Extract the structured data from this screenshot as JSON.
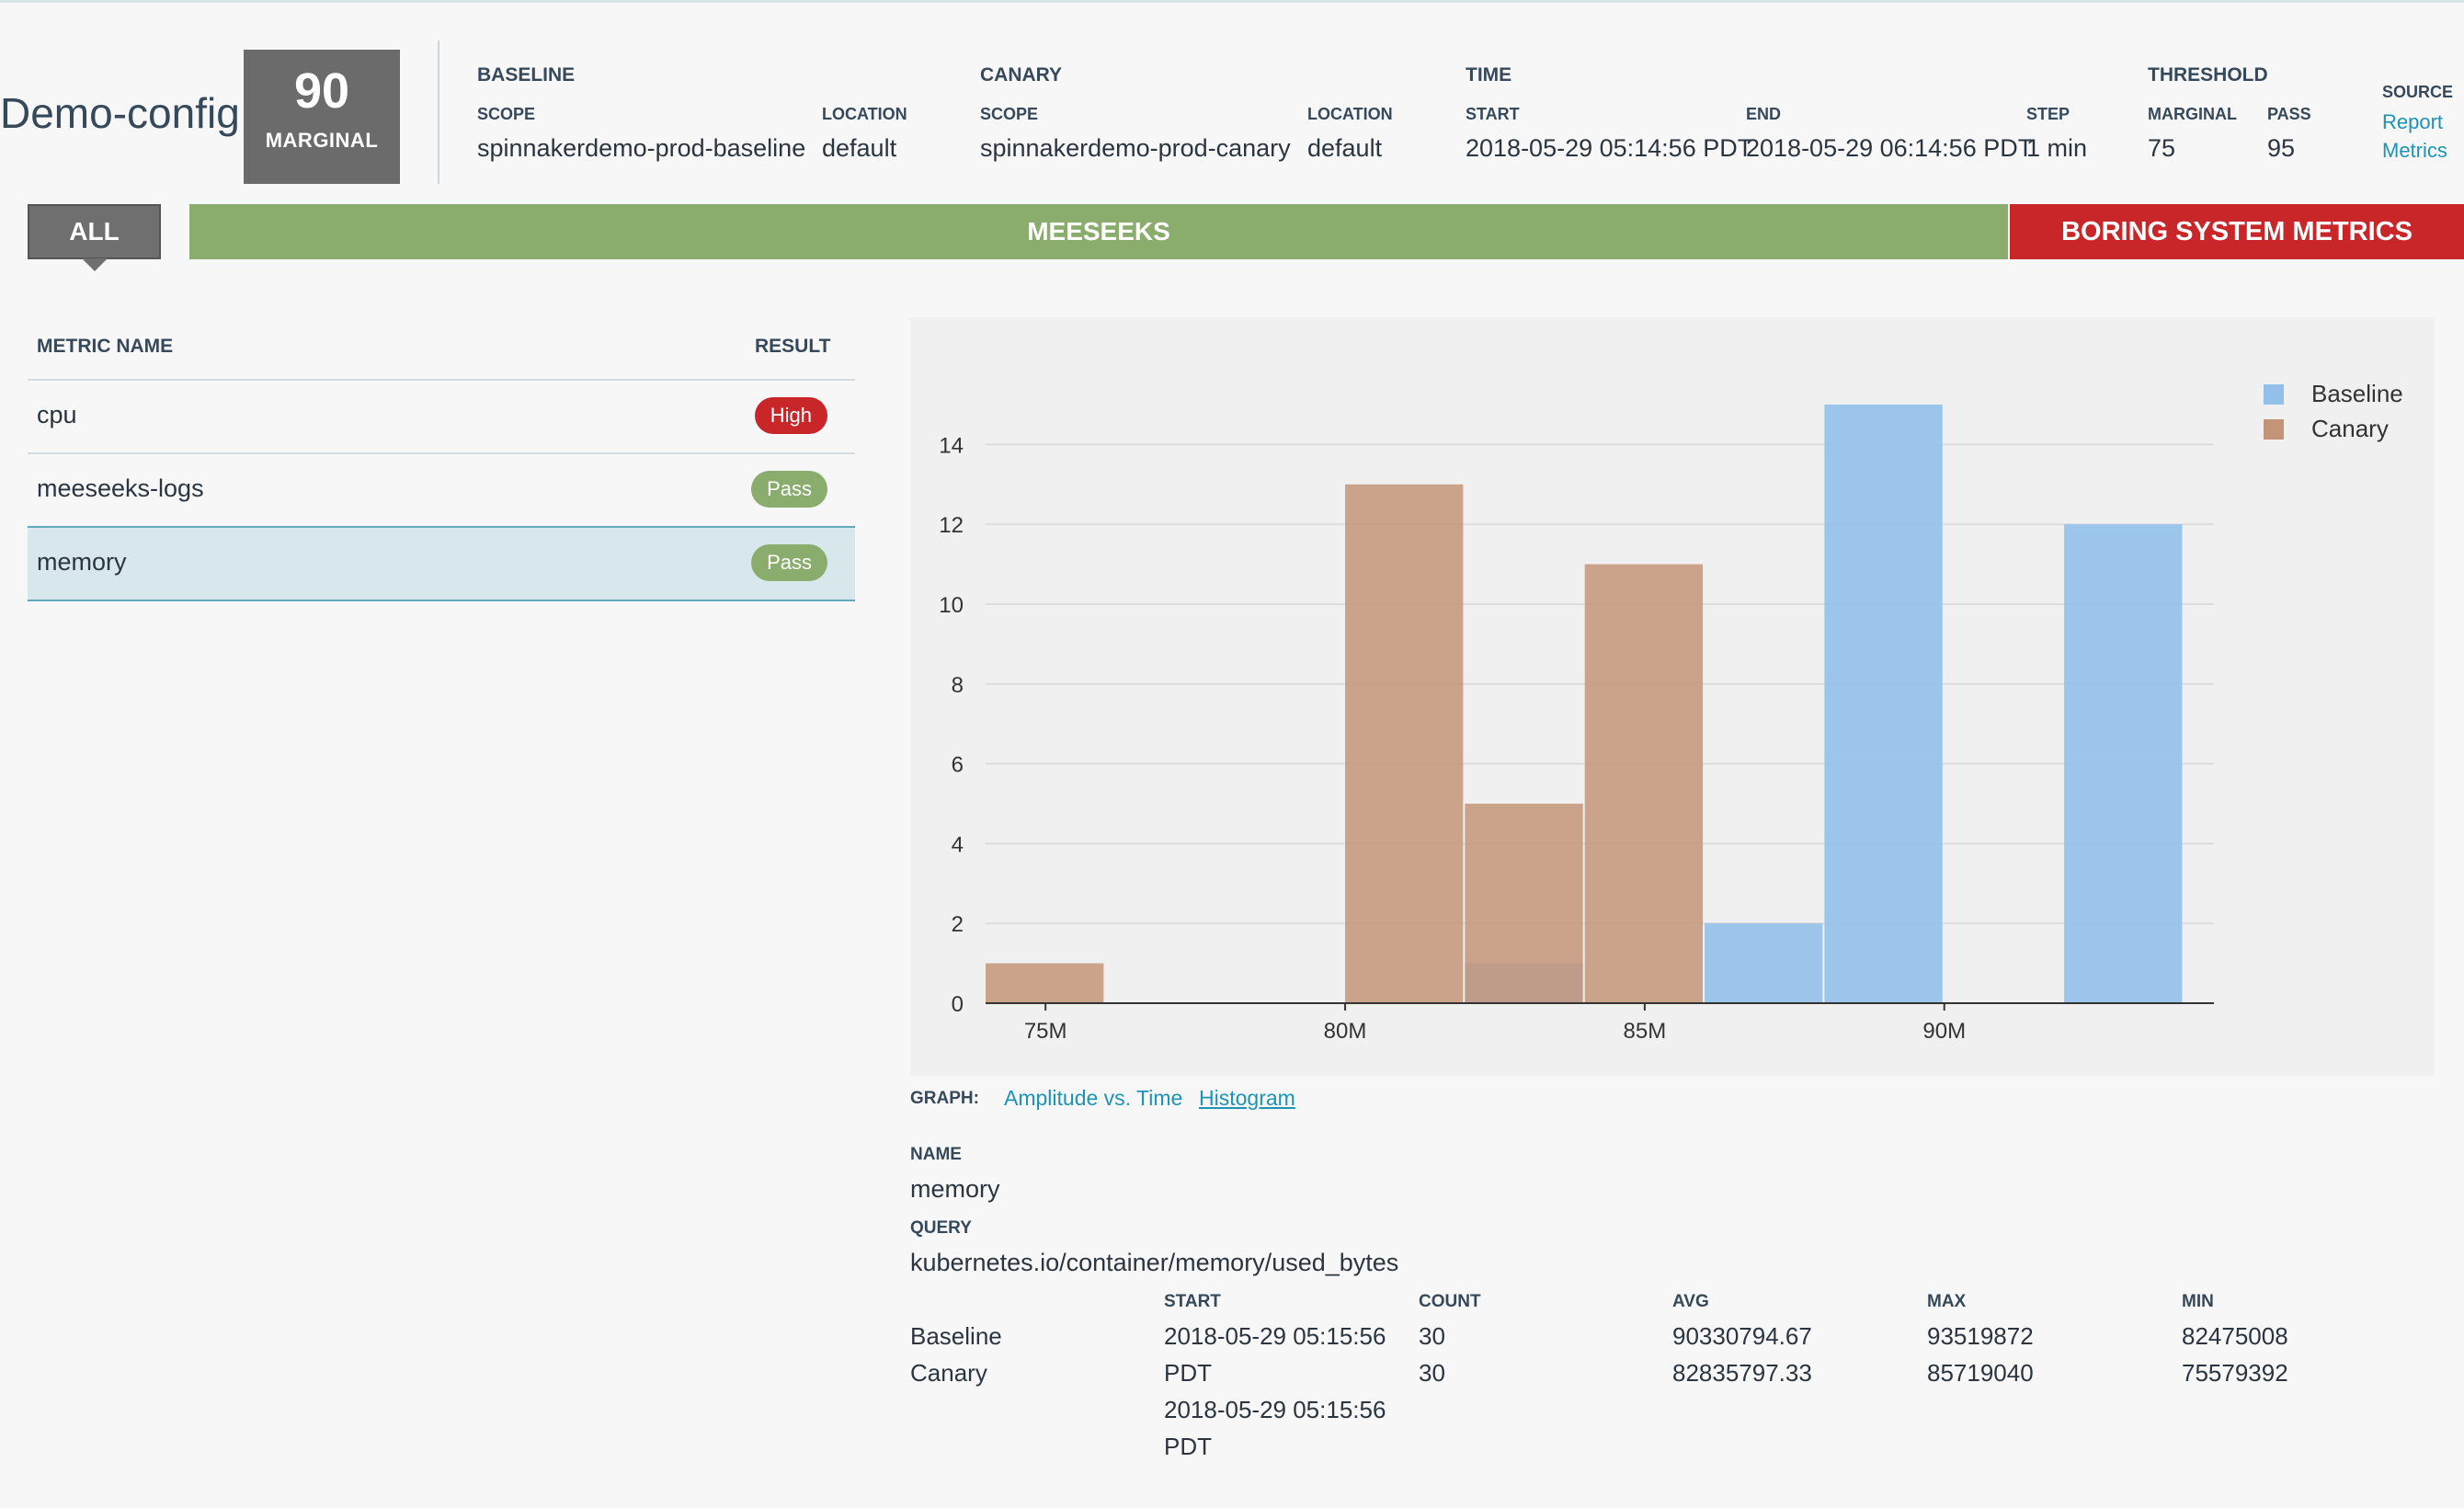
{
  "header": {
    "config_name": "Demo-config",
    "score": "90",
    "score_label": "MARGINAL",
    "baseline": {
      "group": "BASELINE",
      "scope_label": "SCOPE",
      "scope": "spinnakerdemo-prod-baseline",
      "location_label": "LOCATION",
      "location": "default"
    },
    "canary": {
      "group": "CANARY",
      "scope_label": "SCOPE",
      "scope": "spinnakerdemo-prod-canary",
      "location_label": "LOCATION",
      "location": "default"
    },
    "time": {
      "group": "TIME",
      "start_label": "START",
      "start": "2018-05-29 05:14:56 PDT",
      "end_label": "END",
      "end": "2018-05-29 06:14:56 PDT",
      "step_label": "STEP",
      "step": "1 min"
    },
    "threshold": {
      "group": "THRESHOLD",
      "marginal_label": "MARGINAL",
      "marginal": "75",
      "pass_label": "PASS",
      "pass": "95"
    },
    "source": {
      "label": "SOURCE",
      "report_link": "Report",
      "metrics_link": "Metrics"
    }
  },
  "groups": {
    "all": "ALL",
    "meeseeks": "MEESEEKS",
    "boring": "BORING SYSTEM METRICS",
    "colors": {
      "pass": "#8aad6d",
      "high": "#c9262a",
      "neutral": "#6f6f6f"
    }
  },
  "metrics_table": {
    "col_name": "METRIC NAME",
    "col_result": "RESULT",
    "rows": [
      {
        "name": "cpu",
        "result": "High"
      },
      {
        "name": "meeseeks-logs",
        "result": "Pass"
      },
      {
        "name": "memory",
        "result": "Pass"
      }
    ]
  },
  "chart_data": {
    "type": "bar",
    "title": "",
    "xlabel": "",
    "ylabel": "",
    "xlim": [
      74000000,
      94500000
    ],
    "ylim": [
      0,
      15
    ],
    "y_ticks": [
      0,
      2,
      4,
      6,
      8,
      10,
      12,
      14
    ],
    "x_ticks": [
      75000000,
      80000000,
      85000000,
      90000000
    ],
    "x_tick_labels": [
      "75M",
      "80M",
      "85M",
      "90M"
    ],
    "bin_width": 2000000,
    "grid": true,
    "legend_position": "top-right",
    "series": [
      {
        "name": "Baseline",
        "color": "#92c0ea",
        "bins": [
          {
            "x0": 82000000,
            "y": 1
          },
          {
            "x0": 86000000,
            "y": 2
          },
          {
            "x0": 88000000,
            "y": 15
          },
          {
            "x0": 92000000,
            "y": 12
          }
        ]
      },
      {
        "name": "Canary",
        "color": "#c49478",
        "bins": [
          {
            "x0": 74000000,
            "y": 1
          },
          {
            "x0": 80000000,
            "y": 13
          },
          {
            "x0": 82000000,
            "y": 5
          },
          {
            "x0": 84000000,
            "y": 11
          }
        ]
      }
    ]
  },
  "graph_controls": {
    "label": "GRAPH:",
    "amplitude": "Amplitude vs. Time",
    "histogram": "Histogram"
  },
  "details": {
    "name_label": "NAME",
    "name": "memory",
    "query_label": "QUERY",
    "query": "kubernetes.io/container/memory/used_bytes"
  },
  "stats": {
    "headers": {
      "start": "START",
      "count": "COUNT",
      "avg": "AVG",
      "max": "MAX",
      "min": "MIN"
    },
    "rows": [
      {
        "label": "Baseline",
        "start": "2018-05-29 05:15:56",
        "start_tz": "PDT",
        "count": "30",
        "avg": "90330794.67",
        "max": "93519872",
        "min": "82475008"
      },
      {
        "label": "Canary",
        "start": "2018-05-29 05:15:56",
        "start_tz": "PDT",
        "count": "30",
        "avg": "82835797.33",
        "max": "85719040",
        "min": "75579392"
      }
    ]
  }
}
